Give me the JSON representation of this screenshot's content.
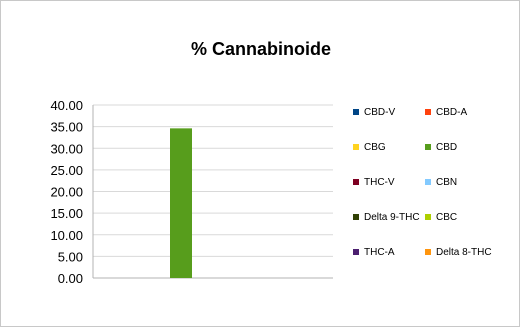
{
  "chart_data": {
    "type": "bar",
    "title": "% Cannabinoide",
    "xlabel": "",
    "ylabel": "",
    "ylim": [
      0,
      40
    ],
    "y_ticks": [
      "0.00",
      "5.00",
      "10.00",
      "15.00",
      "20.00",
      "25.00",
      "30.00",
      "35.00",
      "40.00"
    ],
    "grid": true,
    "legend_position": "right",
    "categories": [
      ""
    ],
    "series": [
      {
        "name": "CBD-V",
        "color": "#004586",
        "values": [
          0
        ]
      },
      {
        "name": "CBD-A",
        "color": "#ff420e",
        "values": [
          0
        ]
      },
      {
        "name": "CBG",
        "color": "#ffd320",
        "values": [
          0
        ]
      },
      {
        "name": "CBD",
        "color": "#579d1c",
        "values": [
          34.6
        ]
      },
      {
        "name": "THC-V",
        "color": "#7e0021",
        "values": [
          0
        ]
      },
      {
        "name": "CBN",
        "color": "#83caff",
        "values": [
          0
        ]
      },
      {
        "name": "Delta 9-THC",
        "color": "#314004",
        "values": [
          0
        ]
      },
      {
        "name": "CBC",
        "color": "#aecf00",
        "values": [
          0
        ]
      },
      {
        "name": "THC-A",
        "color": "#4b1f6f",
        "values": [
          0
        ]
      },
      {
        "name": "Delta 8-THC",
        "color": "#ff950e",
        "values": [
          0
        ]
      }
    ]
  }
}
